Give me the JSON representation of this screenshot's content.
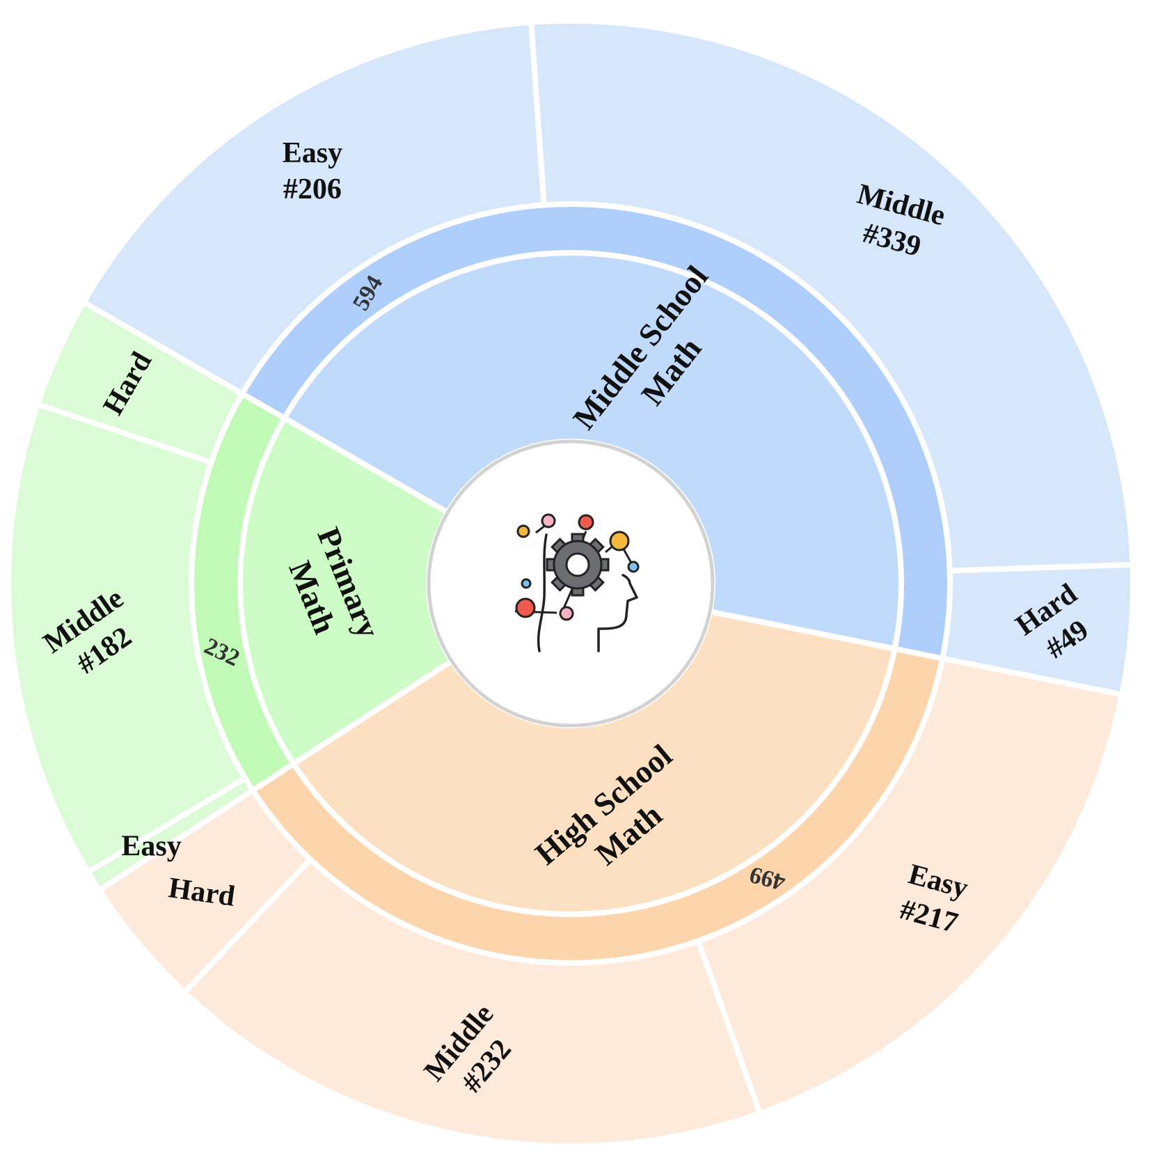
{
  "chart_data": {
    "type": "sunburst",
    "title": "",
    "categories": [
      {
        "name_lines": [
          "Middle School",
          "Math"
        ],
        "count": "594",
        "value": 594,
        "colors": {
          "inner": "#c0dafb",
          "band": "#aecefb",
          "outer": "#d6e6fb"
        },
        "children": [
          {
            "name": "Easy",
            "label": "#206",
            "value": 206
          },
          {
            "name": "Middle",
            "label": "#339",
            "value": 339
          },
          {
            "name": "Hard",
            "label": "#49",
            "value": 49
          }
        ]
      },
      {
        "name_lines": [
          "High School",
          "Math"
        ],
        "count": "499",
        "value": 499,
        "colors": {
          "inner": "#fddfc1",
          "band": "#fdd5ad",
          "outer": "#fdeada"
        },
        "children": [
          {
            "name": "Easy",
            "label": "#217",
            "value": 217
          },
          {
            "name": "Middle",
            "label": "#232",
            "value": 232
          },
          {
            "name": "Hard",
            "label": "",
            "value": 50
          }
        ]
      },
      {
        "name_lines": [
          "Primary",
          "Math"
        ],
        "count": "232",
        "value": 232,
        "colors": {
          "inner": "#cdfbc6",
          "band": "#c0fab6",
          "outer": "#dafbd6"
        },
        "children": [
          {
            "name": "Easy",
            "label": "",
            "value": 8
          },
          {
            "name": "Middle",
            "label": "#182",
            "value": 182
          },
          {
            "name": "Hard",
            "label": "",
            "value": 42
          }
        ]
      }
    ],
    "center_icon": "brain-gear-icon"
  }
}
